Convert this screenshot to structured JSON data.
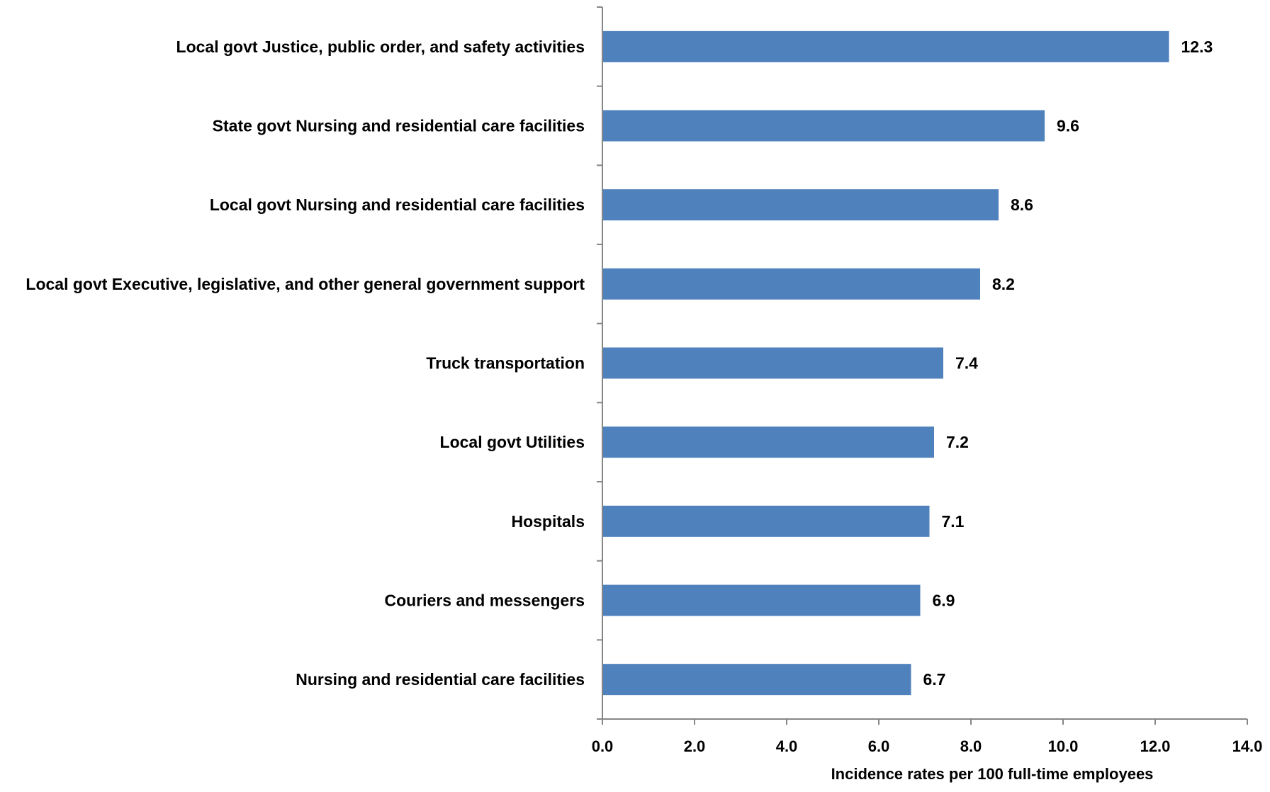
{
  "chart_data": {
    "type": "bar",
    "orientation": "horizontal",
    "categories": [
      "Local govt Justice, public order, and safety activities",
      "State govt Nursing and residential care facilities",
      "Local govt Nursing and residential care facilities",
      "Local govt Executive, legislative, and other general government support",
      "Truck transportation",
      "Local govt Utilities",
      "Hospitals",
      "Couriers and messengers",
      "Nursing and residential care facilities"
    ],
    "values": [
      12.3,
      9.6,
      8.6,
      8.2,
      7.4,
      7.2,
      7.1,
      6.9,
      6.7
    ],
    "value_labels": [
      "12.3",
      "9.6",
      "8.6",
      "8.2",
      "7.4",
      "7.2",
      "7.1",
      "6.9",
      "6.7"
    ],
    "xlabel": "Incidence rates per 100 full-time employees",
    "xlim": [
      0,
      14
    ],
    "xticks": [
      "0.0",
      "2.0",
      "4.0",
      "6.0",
      "8.0",
      "10.0",
      "12.0",
      "14.0"
    ],
    "grid": false,
    "legend": "none",
    "bar_color": "#4f81bd"
  }
}
